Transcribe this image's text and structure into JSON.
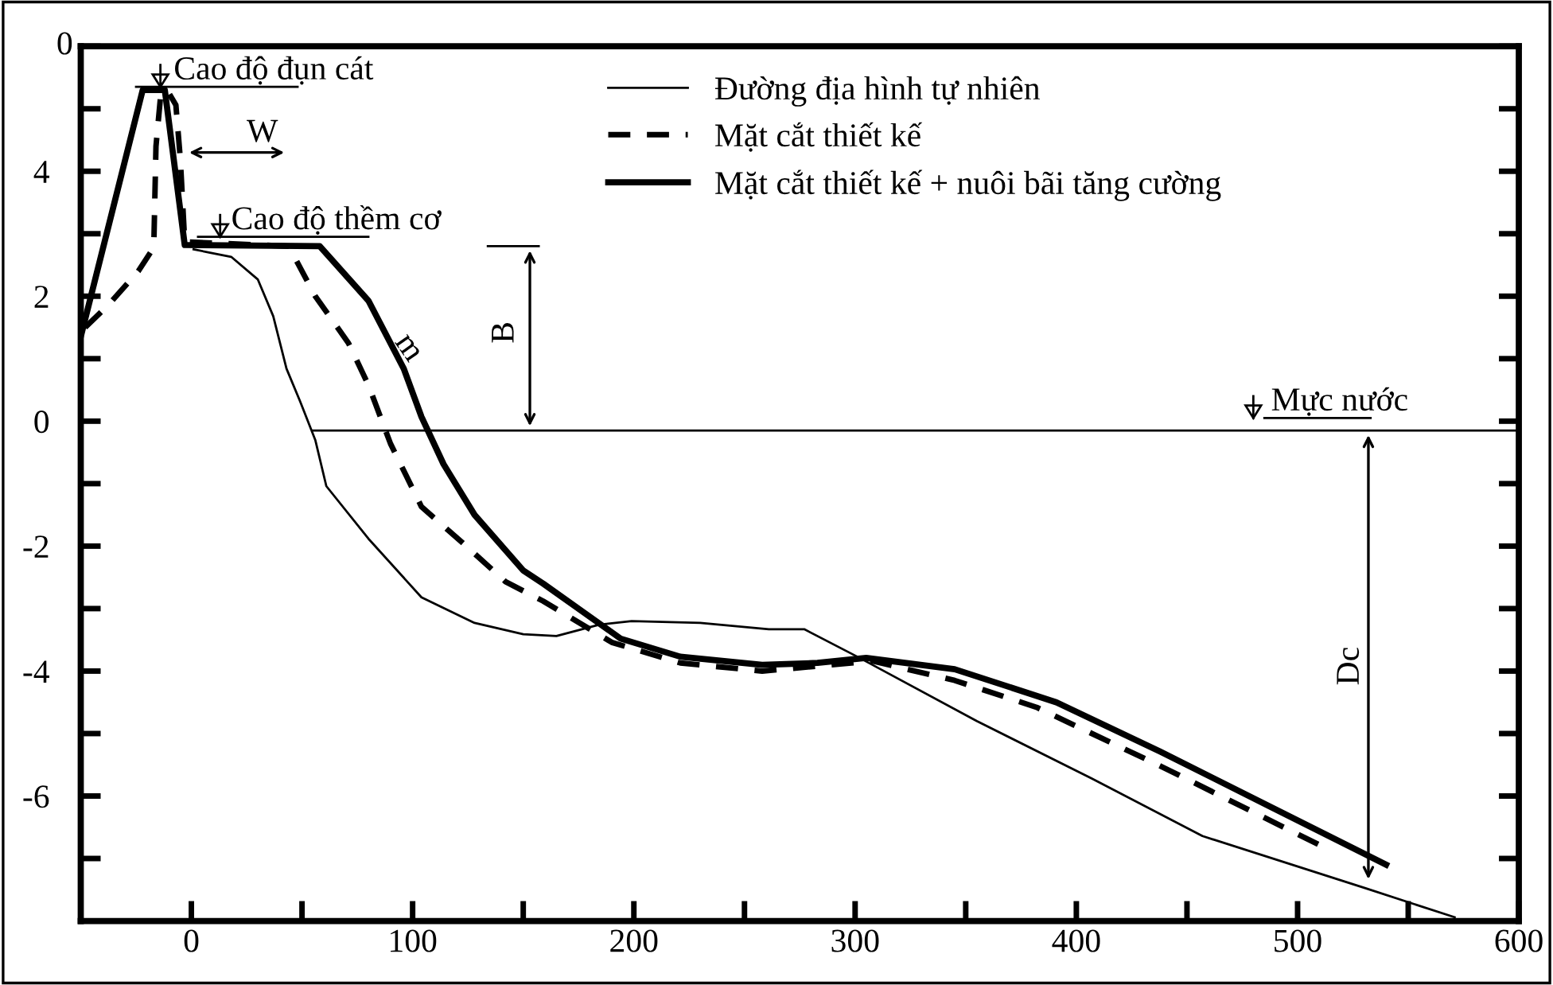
{
  "chart_data": {
    "type": "line",
    "xlim": [
      -50,
      600
    ],
    "ylim": [
      -8,
      6
    ],
    "xticks": [
      0,
      {
        "value": 50,
        "label": null
      },
      100,
      {
        "value": 150,
        "label": null
      },
      200,
      {
        "value": 250,
        "label": null
      },
      300,
      {
        "value": 350,
        "label": null
      },
      400,
      {
        "value": 450,
        "label": null
      },
      500,
      {
        "value": 550,
        "label": null
      },
      600
    ],
    "yticks": [
      {
        "value": 6,
        "label": null
      },
      {
        "value": 5,
        "label": null
      },
      4,
      {
        "value": 3,
        "label": null
      },
      2,
      {
        "value": 1,
        "label": null
      },
      0,
      {
        "value": -1,
        "label": null
      },
      -2,
      {
        "value": -3,
        "label": null
      },
      -4,
      {
        "value": -5,
        "label": null
      },
      -6,
      {
        "value": -7,
        "label": null
      }
    ],
    "grid": false,
    "legend": "top",
    "marker": "none",
    "series": [
      {
        "name": "Đường địa hình tự nhiên",
        "color": "#000000",
        "line_style": "solid",
        "x": [
          1,
          8,
          18,
          30,
          37,
          43,
          49,
          56,
          61,
          80,
          104,
          128,
          150,
          165,
          184,
          199,
          230,
          261,
          277,
          301,
          355,
          407,
          457,
          531,
          571
        ],
        "values": [
          2.75,
          2.7,
          2.63,
          2.27,
          1.68,
          0.84,
          0.33,
          -0.3,
          -1.04,
          -1.88,
          -2.82,
          -3.23,
          -3.41,
          -3.44,
          -3.26,
          -3.2,
          -3.23,
          -3.33,
          -3.33,
          -3.77,
          -4.8,
          -5.72,
          -6.64,
          -7.48,
          -7.94
        ]
      },
      {
        "name": "Mặt cắt thiết kế",
        "color": "#000000",
        "line_style": "dashed",
        "x": [
          -48,
          -37,
          -24,
          -17,
          -16,
          -14,
          -11,
          -7,
          -5,
          -3,
          44,
          56,
          71,
          80,
          90,
          104,
          123,
          142,
          159,
          190,
          221,
          258,
          283,
          308,
          345,
          382,
          438,
          512
        ],
        "values": [
          1.5,
          1.88,
          2.4,
          2.78,
          4.4,
          5.17,
          5.3,
          5.06,
          4.2,
          2.87,
          2.8,
          2.0,
          1.25,
          0.58,
          -0.36,
          -1.37,
          -1.96,
          -2.57,
          -2.88,
          -3.54,
          -3.87,
          -4.0,
          -3.92,
          -3.84,
          -4.15,
          -4.58,
          -5.52,
          -6.82
        ]
      },
      {
        "name": "Mặt cắt thiết kế + nuôi bãi tăng cường",
        "color": "#000000",
        "line_style": "solid",
        "x": [
          -50,
          -22,
          -12,
          -3,
          58,
          80,
          96,
          104,
          114,
          128,
          150,
          159,
          194,
          221,
          258,
          283,
          305,
          345,
          391,
          438,
          540
        ],
        "values": [
          1.35,
          5.3,
          5.3,
          2.82,
          2.8,
          1.93,
          0.84,
          0.07,
          -0.69,
          -1.5,
          -2.39,
          -2.6,
          -3.48,
          -3.77,
          -3.9,
          -3.87,
          -3.79,
          -3.97,
          -4.5,
          -5.29,
          -7.1
        ]
      },
      {
        "color": "#000000",
        "line_style": "solid",
        "x": [
          55,
          600
        ],
        "values": [
          -0.15,
          -0.15
        ]
      }
    ],
    "annotations": [
      "Cao độ đụn cát",
      "W",
      "Cao độ thềm cơ",
      "m",
      "B",
      "Mực nước",
      "Dc",
      "0"
    ]
  }
}
